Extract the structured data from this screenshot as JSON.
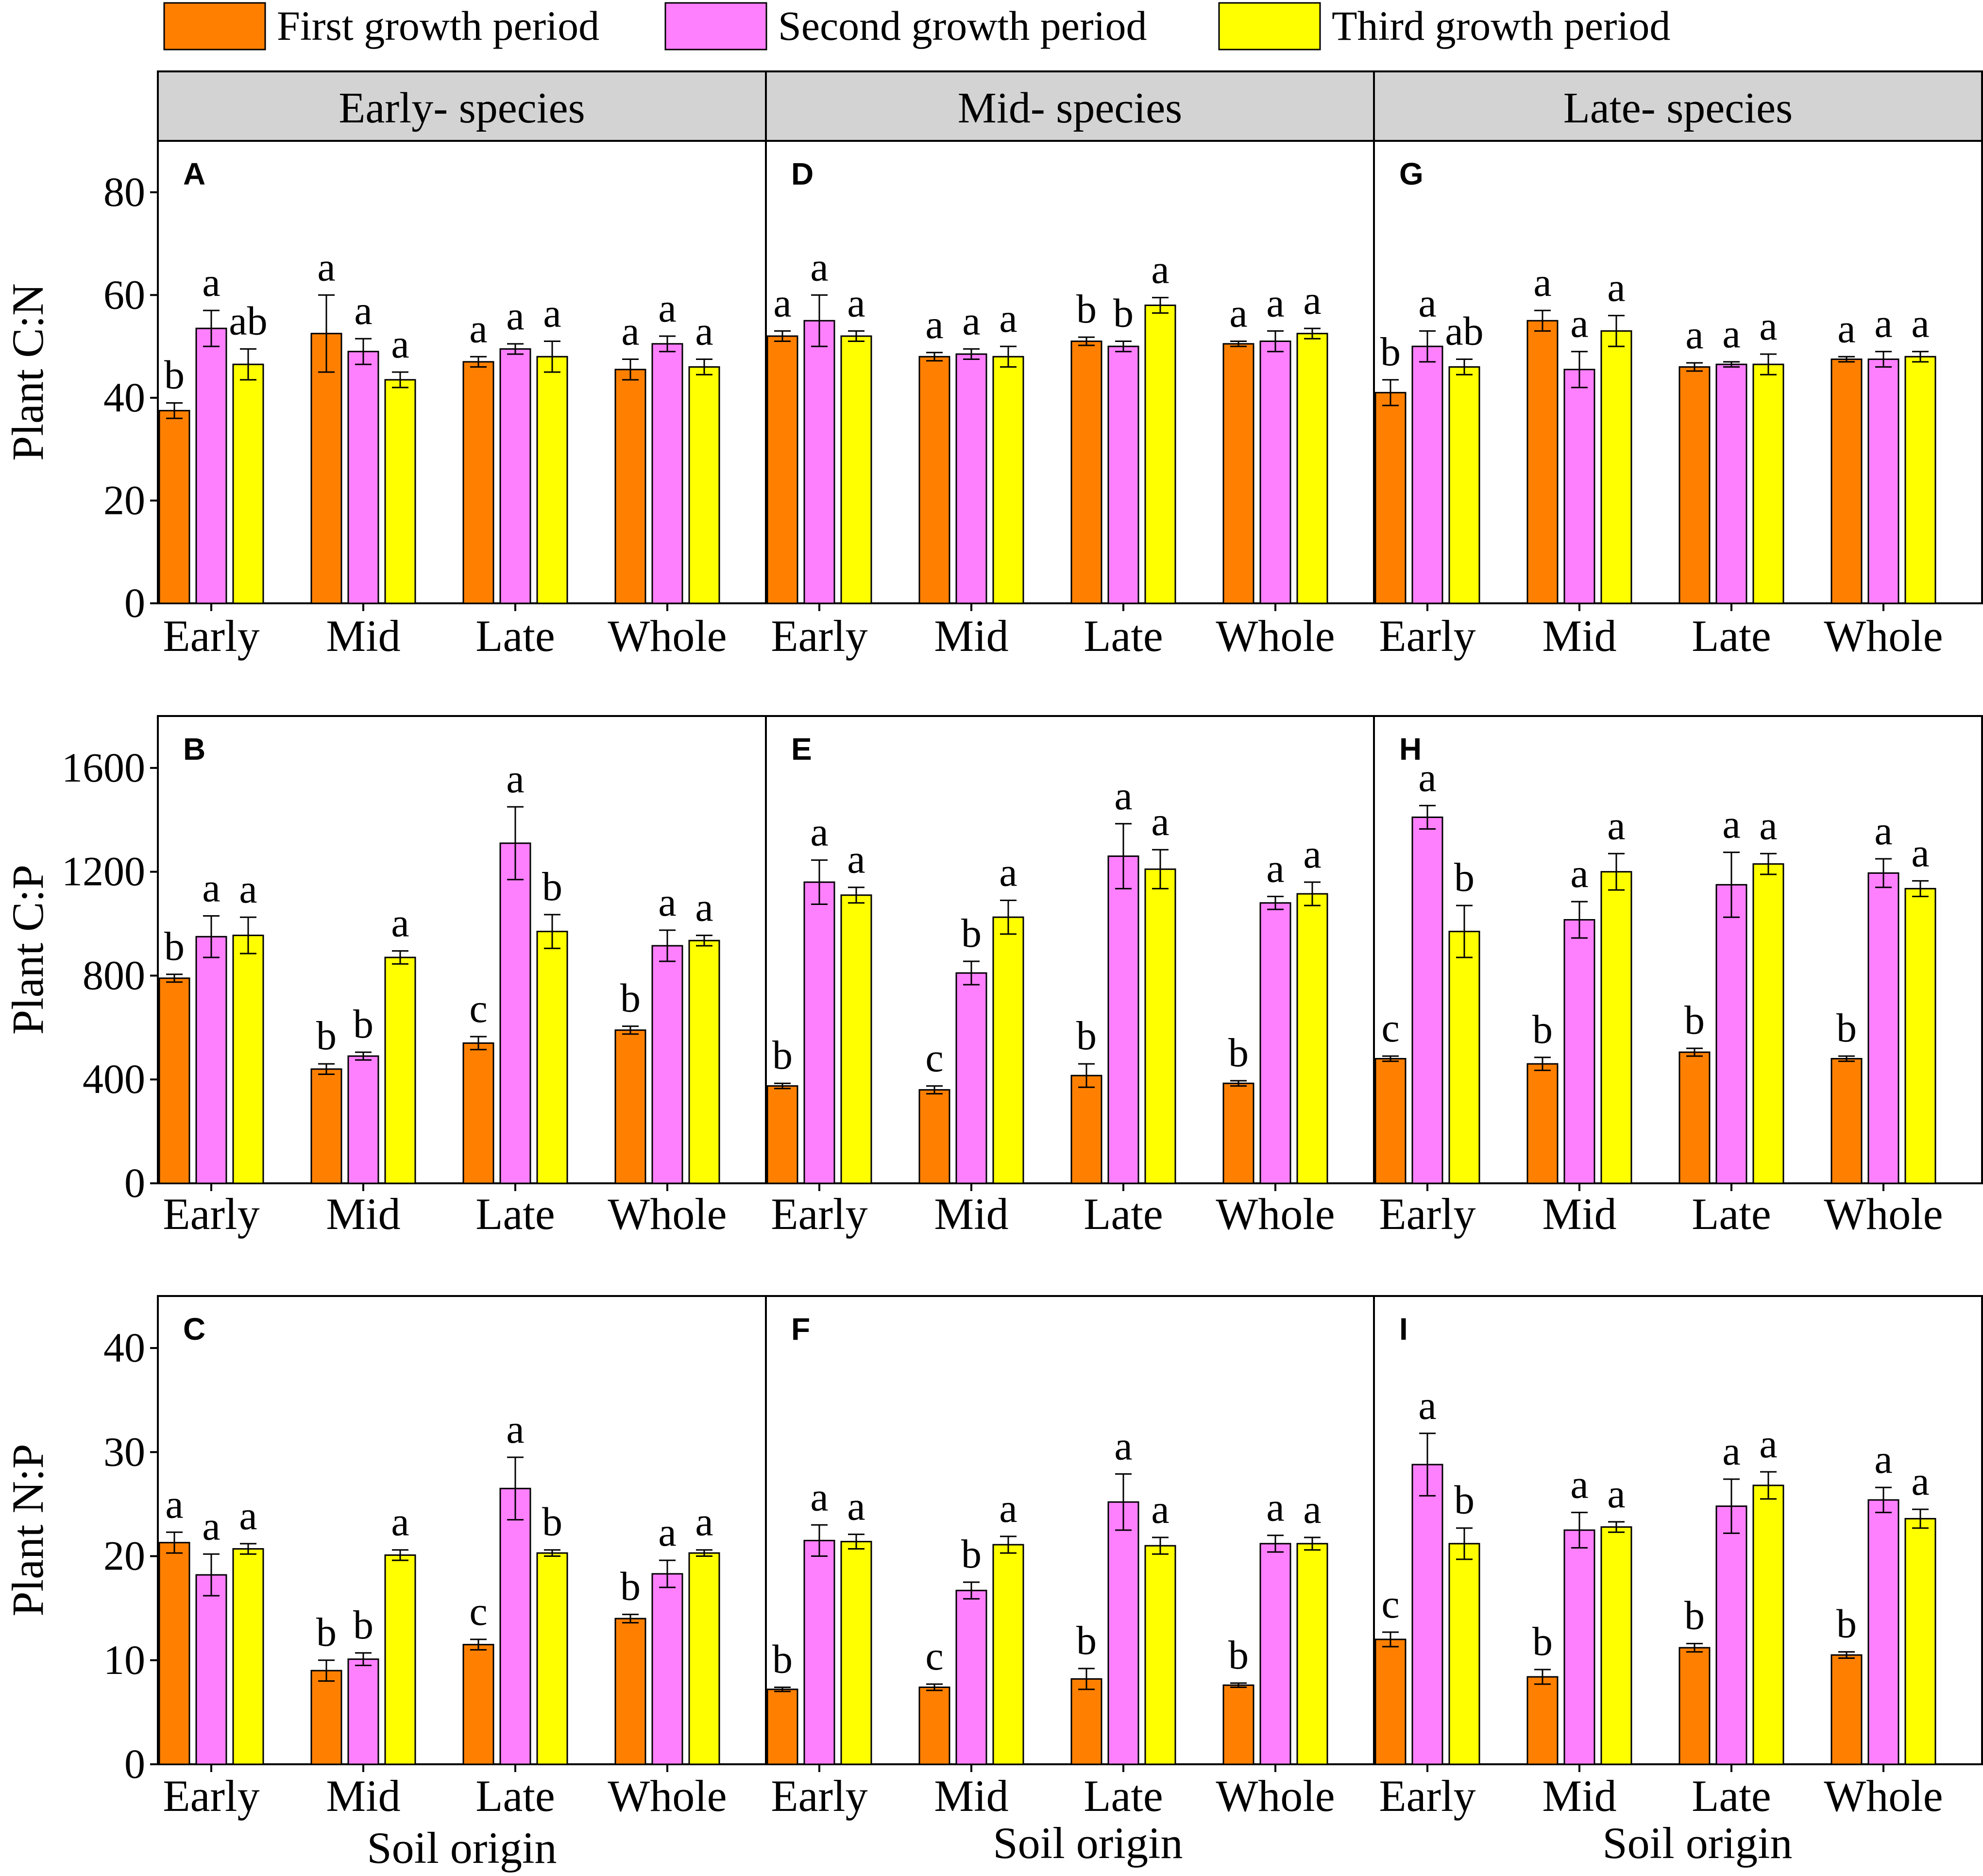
{
  "colors": {
    "first": "#ff8000",
    "second": "#ff80ff",
    "third": "#ffff00",
    "strip": "#d3d3d3",
    "frame": "#000000"
  },
  "legend": {
    "first": "First growth period",
    "second": "Second growth period",
    "third": "Third growth period"
  },
  "strips": [
    "Early- species",
    "Mid- species",
    "Late- species"
  ],
  "x_label": "Soil origin",
  "chart_data": [
    {
      "type": "bar",
      "ylabel": "Plant C:N",
      "ylim": [
        0,
        90
      ],
      "yticks": [
        0,
        20,
        40,
        60,
        80
      ],
      "categories": [
        "Early",
        "Mid",
        "Late",
        "Whole"
      ],
      "panels": [
        {
          "letter": "A",
          "species": "Early- species",
          "series": [
            {
              "name": "First growth period",
              "values": [
                37.5,
                52.5,
                47.0,
                45.5
              ],
              "errors": [
                1.5,
                7.5,
                1.0,
                2.0
              ],
              "sig": [
                "b",
                "a",
                "a",
                "a"
              ]
            },
            {
              "name": "Second growth period",
              "values": [
                53.5,
                49.0,
                49.5,
                50.5
              ],
              "errors": [
                3.5,
                2.5,
                1.0,
                1.5
              ],
              "sig": [
                "a",
                "a",
                "a",
                "a"
              ]
            },
            {
              "name": "Third growth period",
              "values": [
                46.5,
                43.5,
                48.0,
                46.0
              ],
              "errors": [
                3.0,
                1.5,
                3.0,
                1.5
              ],
              "sig": [
                "ab",
                "a",
                "a",
                "a"
              ]
            }
          ]
        },
        {
          "letter": "D",
          "species": "Mid- species",
          "series": [
            {
              "name": "First growth period",
              "values": [
                52.0,
                48.0,
                51.0,
                50.5
              ],
              "errors": [
                1.0,
                0.8,
                0.8,
                0.5
              ],
              "sig": [
                "a",
                "a",
                "b",
                "a"
              ]
            },
            {
              "name": "Second growth period",
              "values": [
                55.0,
                48.5,
                50.0,
                51.0
              ],
              "errors": [
                5.0,
                1.0,
                1.0,
                2.0
              ],
              "sig": [
                "a",
                "a",
                "b",
                "a"
              ]
            },
            {
              "name": "Third growth period",
              "values": [
                52.0,
                48.0,
                58.0,
                52.5
              ],
              "errors": [
                1.0,
                2.0,
                1.5,
                1.0
              ],
              "sig": [
                "a",
                "a",
                "a",
                "a"
              ]
            }
          ]
        },
        {
          "letter": "G",
          "species": "Late- species",
          "series": [
            {
              "name": "First growth period",
              "values": [
                41.0,
                55.0,
                46.0,
                47.5
              ],
              "errors": [
                2.5,
                2.0,
                0.8,
                0.5
              ],
              "sig": [
                "b",
                "a",
                "a",
                "a"
              ]
            },
            {
              "name": "Second growth period",
              "values": [
                50.0,
                45.5,
                46.5,
                47.5
              ],
              "errors": [
                3.0,
                3.5,
                0.5,
                1.5
              ],
              "sig": [
                "a",
                "a",
                "a",
                "a"
              ]
            },
            {
              "name": "Third growth period",
              "values": [
                46.0,
                53.0,
                46.5,
                48.0
              ],
              "errors": [
                1.5,
                3.0,
                2.0,
                1.0
              ],
              "sig": [
                "ab",
                "a",
                "a",
                "a"
              ]
            }
          ]
        }
      ]
    },
    {
      "type": "bar",
      "ylabel": "Plant C:P",
      "ylim": [
        0,
        1800
      ],
      "yticks": [
        0,
        400,
        800,
        1200,
        1600
      ],
      "categories": [
        "Early",
        "Mid",
        "Late",
        "Whole"
      ],
      "panels": [
        {
          "letter": "B",
          "species": "Early- species",
          "series": [
            {
              "name": "First growth period",
              "values": [
                790,
                440,
                540,
                590
              ],
              "errors": [
                15,
                20,
                25,
                15
              ],
              "sig": [
                "b",
                "b",
                "c",
                "b"
              ]
            },
            {
              "name": "Second growth period",
              "values": [
                950,
                490,
                1310,
                915
              ],
              "errors": [
                80,
                15,
                140,
                60
              ],
              "sig": [
                "a",
                "b",
                "a",
                "a"
              ]
            },
            {
              "name": "Third growth period",
              "values": [
                955,
                870,
                970,
                935
              ],
              "errors": [
                70,
                25,
                65,
                20
              ],
              "sig": [
                "a",
                "a",
                "b",
                "a"
              ]
            }
          ]
        },
        {
          "letter": "E",
          "species": "Mid- species",
          "series": [
            {
              "name": "First growth period",
              "values": [
                375,
                360,
                415,
                385
              ],
              "errors": [
                10,
                15,
                45,
                10
              ],
              "sig": [
                "b",
                "c",
                "b",
                "b"
              ]
            },
            {
              "name": "Second growth period",
              "values": [
                1160,
                810,
                1260,
                1080
              ],
              "errors": [
                85,
                45,
                125,
                25
              ],
              "sig": [
                "a",
                "b",
                "a",
                "a"
              ]
            },
            {
              "name": "Third growth period",
              "values": [
                1110,
                1025,
                1210,
                1115
              ],
              "errors": [
                30,
                65,
                75,
                45
              ],
              "sig": [
                "a",
                "a",
                "a",
                "a"
              ]
            }
          ]
        },
        {
          "letter": "H",
          "species": "Late- species",
          "series": [
            {
              "name": "First growth period",
              "values": [
                480,
                460,
                505,
                480
              ],
              "errors": [
                10,
                25,
                15,
                10
              ],
              "sig": [
                "c",
                "b",
                "b",
                "b"
              ]
            },
            {
              "name": "Second growth period",
              "values": [
                1410,
                1015,
                1150,
                1195
              ],
              "errors": [
                45,
                70,
                125,
                55
              ],
              "sig": [
                "a",
                "a",
                "a",
                "a"
              ]
            },
            {
              "name": "Third growth period",
              "values": [
                970,
                1200,
                1230,
                1135
              ],
              "errors": [
                100,
                70,
                40,
                30
              ],
              "sig": [
                "b",
                "a",
                "a",
                "a"
              ]
            }
          ]
        }
      ]
    },
    {
      "type": "bar",
      "ylabel": "Plant N:P",
      "ylim": [
        0,
        45
      ],
      "yticks": [
        0,
        10,
        20,
        30,
        40
      ],
      "categories": [
        "Early",
        "Mid",
        "Late",
        "Whole"
      ],
      "panels": [
        {
          "letter": "C",
          "species": "Early- species",
          "series": [
            {
              "name": "First growth period",
              "values": [
                21.3,
                9.0,
                11.5,
                14.0
              ],
              "errors": [
                1.0,
                1.0,
                0.5,
                0.4
              ],
              "sig": [
                "a",
                "b",
                "c",
                "b"
              ]
            },
            {
              "name": "Second growth period",
              "values": [
                18.2,
                10.1,
                26.5,
                18.3
              ],
              "errors": [
                2.0,
                0.6,
                3.0,
                1.3
              ],
              "sig": [
                "a",
                "b",
                "a",
                "a"
              ]
            },
            {
              "name": "Third growth period",
              "values": [
                20.7,
                20.1,
                20.3,
                20.3
              ],
              "errors": [
                0.5,
                0.5,
                0.3,
                0.3
              ],
              "sig": [
                "a",
                "a",
                "b",
                "a"
              ]
            }
          ]
        },
        {
          "letter": "F",
          "species": "Mid- species",
          "series": [
            {
              "name": "First growth period",
              "values": [
                7.2,
                7.4,
                8.2,
                7.6
              ],
              "errors": [
                0.2,
                0.3,
                1.0,
                0.2
              ],
              "sig": [
                "b",
                "c",
                "b",
                "b"
              ]
            },
            {
              "name": "Second growth period",
              "values": [
                21.5,
                16.7,
                25.2,
                21.2
              ],
              "errors": [
                1.5,
                0.8,
                2.7,
                0.8
              ],
              "sig": [
                "a",
                "b",
                "a",
                "a"
              ]
            },
            {
              "name": "Third growth period",
              "values": [
                21.4,
                21.1,
                21.0,
                21.2
              ],
              "errors": [
                0.7,
                0.8,
                0.8,
                0.6
              ],
              "sig": [
                "a",
                "a",
                "a",
                "a"
              ]
            }
          ]
        },
        {
          "letter": "I",
          "species": "Late- species",
          "series": [
            {
              "name": "First growth period",
              "values": [
                12.0,
                8.4,
                11.2,
                10.5
              ],
              "errors": [
                0.7,
                0.7,
                0.4,
                0.3
              ],
              "sig": [
                "c",
                "b",
                "b",
                "b"
              ]
            },
            {
              "name": "Second growth period",
              "values": [
                28.8,
                22.5,
                24.8,
                25.4
              ],
              "errors": [
                3.0,
                1.7,
                2.6,
                1.2
              ],
              "sig": [
                "a",
                "a",
                "a",
                "a"
              ]
            },
            {
              "name": "Third growth period",
              "values": [
                21.2,
                22.8,
                26.8,
                23.6
              ],
              "errors": [
                1.5,
                0.5,
                1.3,
                0.9
              ],
              "sig": [
                "b",
                "a",
                "a",
                "a"
              ]
            }
          ]
        }
      ]
    }
  ]
}
